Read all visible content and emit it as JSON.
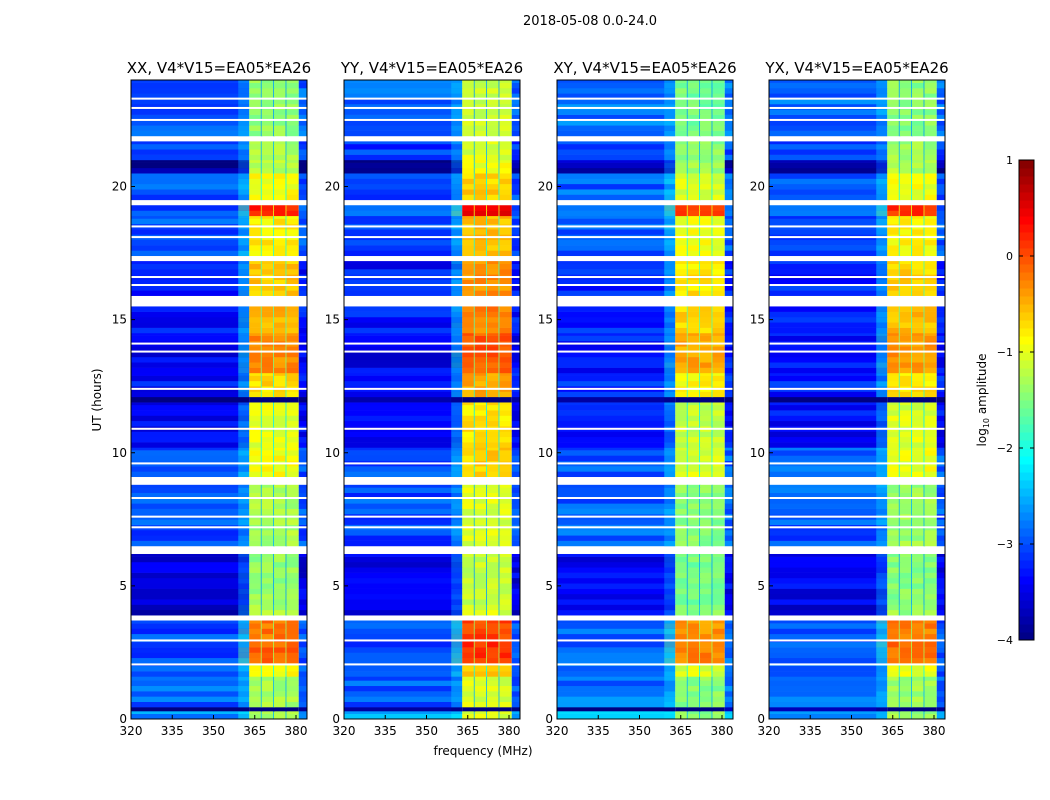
{
  "chart_data": {
    "type": "heatmap",
    "suptitle": "2018-05-08 0.0-24.0",
    "xlabel": "frequency (MHz)",
    "ylabel": "UT (hours)",
    "xlim": [
      320,
      384
    ],
    "ylim": [
      0,
      24
    ],
    "xticks": [
      "320",
      "335",
      "350",
      "365",
      "380"
    ],
    "xtick_values": [
      320,
      335,
      350,
      365,
      380
    ],
    "yticks": [
      "0",
      "5",
      "10",
      "15",
      "20"
    ],
    "ytick_values": [
      0,
      5,
      10,
      15,
      20
    ],
    "rfi_band_mhz": [
      363,
      381
    ],
    "rfi_subband_gaps_mhz": [
      367.5,
      372,
      376.5
    ],
    "panels": [
      {
        "title": "XX, V4*V15=EA05*EA26",
        "band_offset": 0,
        "bg_offset": 0
      },
      {
        "title": "YY, V4*V15=EA05*EA26",
        "band_offset": 0.25,
        "bg_offset": 0
      },
      {
        "title": "XY, V4*V15=EA05*EA26",
        "band_offset": -0.15,
        "bg_offset": 0.1
      },
      {
        "title": "YX, V4*V15=EA05*EA26",
        "band_offset": -0.05,
        "bg_offset": 0.05
      }
    ],
    "segments_note": "[start_hour, end_hour, background_log10_amp, band_log10_amp]; null = flagged",
    "segments": [
      [
        0,
        0.3,
        -2.6,
        -1.3
      ],
      [
        0.3,
        0.45,
        -4,
        -4
      ],
      [
        0.45,
        1.6,
        -2.9,
        -1.3
      ],
      [
        1.6,
        2.1,
        -3.0,
        -0.9
      ],
      [
        2.1,
        3.0,
        -3.0,
        -0.1
      ],
      [
        3.0,
        3.7,
        -3.0,
        -0.2
      ],
      [
        3.7,
        3.9,
        null,
        null
      ],
      [
        3.9,
        4.3,
        -3.6,
        -1.3
      ],
      [
        4.3,
        6.2,
        -3.5,
        -1.4
      ],
      [
        6.2,
        6.5,
        null,
        null
      ],
      [
        6.5,
        8.8,
        -3.0,
        -1.3
      ],
      [
        8.8,
        9.1,
        null,
        null
      ],
      [
        9.1,
        10.2,
        -3.0,
        -0.9
      ],
      [
        10.2,
        11.9,
        -3.4,
        -1.0
      ],
      [
        11.9,
        12.1,
        -4,
        -4
      ],
      [
        12.1,
        13.0,
        -3.3,
        -0.7
      ],
      [
        13.0,
        14.5,
        -3.4,
        -0.3
      ],
      [
        14.5,
        15.5,
        -3.3,
        -0.5
      ],
      [
        15.5,
        15.9,
        null,
        null
      ],
      [
        15.9,
        17.2,
        -3.3,
        -0.6
      ],
      [
        17.2,
        17.4,
        null,
        null
      ],
      [
        17.4,
        18.9,
        -3.0,
        -0.8
      ],
      [
        18.9,
        19.3,
        -3.0,
        0.2
      ],
      [
        19.3,
        19.5,
        null,
        null
      ],
      [
        19.5,
        20.5,
        -3.0,
        -0.9
      ],
      [
        20.5,
        21.0,
        -3.9,
        -1.2
      ],
      [
        21.0,
        21.7,
        -3.1,
        -1.3
      ],
      [
        21.7,
        21.9,
        null,
        null
      ],
      [
        21.9,
        24,
        -2.9,
        -1.4
      ]
    ],
    "flag_lines_hours": [
      2.05,
      2.95,
      7.2,
      7.6,
      8.3,
      9.6,
      10.9,
      12.4,
      13.8,
      14.1,
      16.3,
      16.6,
      18.1,
      18.5,
      22.5,
      22.95,
      23.3
    ],
    "colorbar": {
      "label": "log10 amplitude",
      "label_main": "log",
      "label_sub": "10",
      "label_rest": " amplitude",
      "range": [
        -4,
        1
      ],
      "ticks": [
        "−4",
        "−3",
        "−2",
        "−1",
        "0",
        "1"
      ],
      "tick_values": [
        -4,
        -3,
        -2,
        -1,
        0,
        1
      ],
      "colormap": "jet"
    }
  }
}
